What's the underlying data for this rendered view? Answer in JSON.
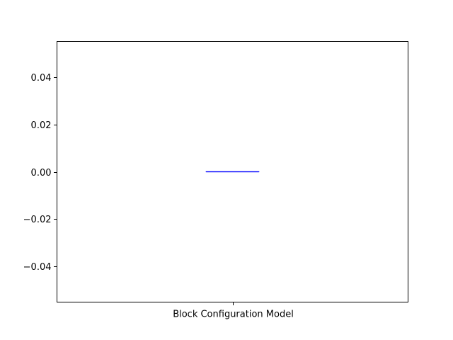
{
  "chart_data": {
    "type": "box",
    "categories": [
      "Block Configuration Model"
    ],
    "series": [
      {
        "category": "Block Configuration Model",
        "min": 0.0,
        "q1": 0.0,
        "median": 0.0,
        "q3": 0.0,
        "max": 0.0
      }
    ],
    "yticks": [
      -0.04,
      -0.02,
      0.0,
      0.02,
      0.04
    ],
    "ytick_labels": [
      "−0.04",
      "−0.02",
      "0.00",
      "0.02",
      "0.04"
    ],
    "ylim": [
      -0.055,
      0.055
    ],
    "title": "",
    "xlabel": "",
    "ylabel": "",
    "grid": false,
    "colors": {
      "box": "#0000ff",
      "median": "#0000ff",
      "whisker": "#0000ff",
      "axes": "#000000"
    }
  }
}
